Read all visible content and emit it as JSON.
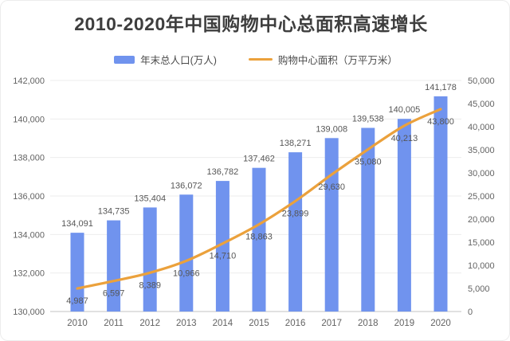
{
  "title": "2010-2020年中国购物中心总面积高速增长",
  "legend": {
    "items": [
      {
        "label": "年末总人口(万人)",
        "type": "bar",
        "color": "#7093EE"
      },
      {
        "label": "购物中心面积（万平万米）",
        "type": "line",
        "color": "#EBA13C"
      }
    ]
  },
  "colors": {
    "bar": "#7093EE",
    "line": "#EBA13C",
    "gridline": "#ededed",
    "axis_line": "#cfcfcf",
    "tick_text": "#636363",
    "value_text": "#565656",
    "title_text": "#3e3e3e"
  },
  "chart_data": {
    "type": "bar",
    "title": "2010-2020年中国购物中心总面积高速增长",
    "categories": [
      "2010",
      "2011",
      "2012",
      "2013",
      "2014",
      "2015",
      "2016",
      "2017",
      "2018",
      "2019",
      "2020"
    ],
    "series": [
      {
        "name": "年末总人口(万人)",
        "type": "bar",
        "axis": "left",
        "color": "#7093EE",
        "values": [
          134091,
          134735,
          135404,
          136072,
          136782,
          137462,
          138271,
          139008,
          139538,
          140005,
          141178
        ],
        "data_labels": true
      },
      {
        "name": "购物中心面积（万平万米）",
        "type": "line",
        "axis": "right",
        "color": "#EBA13C",
        "values": [
          4987,
          6597,
          8389,
          10966,
          14710,
          18863,
          23899,
          29630,
          35080,
          40213,
          43800
        ],
        "data_labels": true
      }
    ],
    "left_axis": {
      "min": 130000,
      "max": 142000,
      "step": 2000
    },
    "right_axis": {
      "min": 0,
      "max": 50000,
      "step": 5000
    },
    "grid": true,
    "legend_position": "top",
    "xlabel": "",
    "ylabel_left": "年末总人口(万人)",
    "ylabel_right": "购物中心面积（万平万米）"
  }
}
